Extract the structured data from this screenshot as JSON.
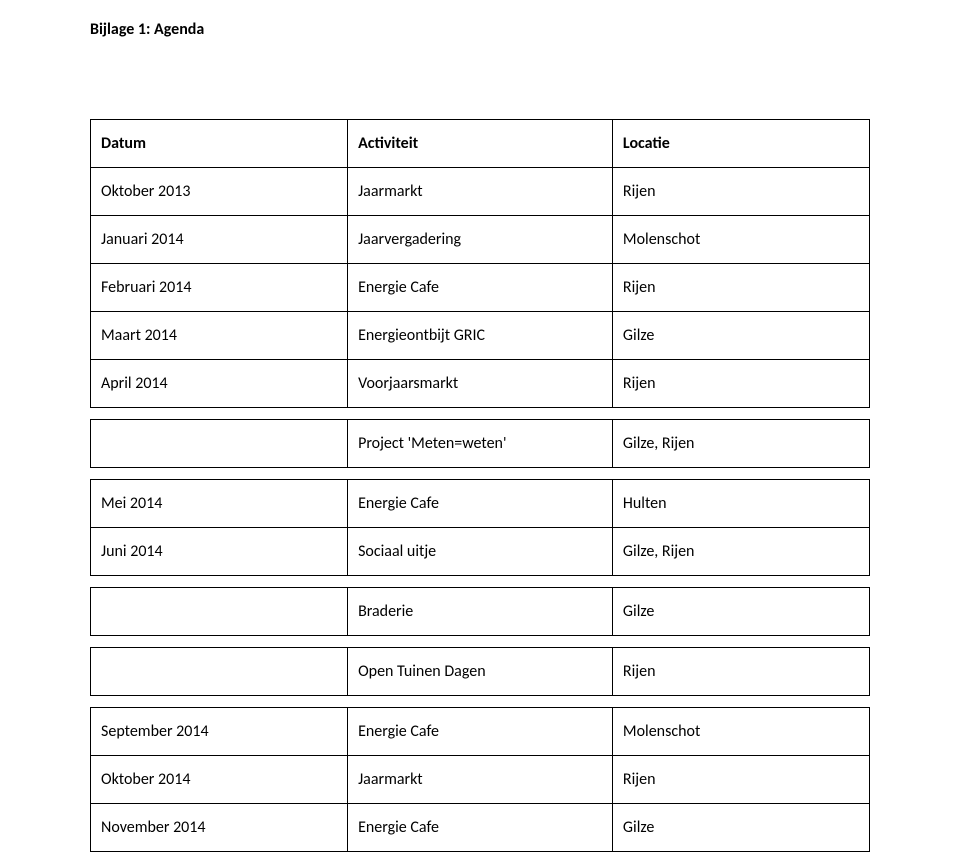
{
  "title": "Bijlage 1: Agenda",
  "headers": {
    "c1": "Datum",
    "c2": "Activiteit",
    "c3": "Locatie"
  },
  "groups": [
    {
      "rows": [
        {
          "c1": "Oktober 2013",
          "c2": "Jaarmarkt",
          "c3": "Rijen"
        },
        {
          "c1": "Januari 2014",
          "c2": "Jaarvergadering",
          "c3": "Molenschot"
        },
        {
          "c1": "Februari 2014",
          "c2": "Energie Cafe",
          "c3": "Rijen"
        },
        {
          "c1": "Maart 2014",
          "c2": "Energieontbijt GRIC",
          "c3": "Gilze"
        },
        {
          "c1": "April 2014",
          "c2": "Voorjaarsmarkt",
          "c3": "Rijen"
        }
      ]
    },
    {
      "rows": [
        {
          "c1": "",
          "c2": "Project 'Meten=weten'",
          "c3": "Gilze, Rijen"
        }
      ]
    },
    {
      "rows": [
        {
          "c1": "Mei 2014",
          "c2": "Energie Cafe",
          "c3": "Hulten"
        },
        {
          "c1": "Juni 2014",
          "c2": "Sociaal uitje",
          "c3": "Gilze, Rijen"
        }
      ]
    },
    {
      "rows": [
        {
          "c1": "",
          "c2": "Braderie",
          "c3": "Gilze"
        }
      ]
    },
    {
      "rows": [
        {
          "c1": "",
          "c2": "Open Tuinen Dagen",
          "c3": "Rijen"
        }
      ]
    },
    {
      "rows": [
        {
          "c1": "September 2014",
          "c2": "Energie Cafe",
          "c3": "Molenschot"
        },
        {
          "c1": "Oktober 2014",
          "c2": "Jaarmarkt",
          "c3": "Rijen"
        },
        {
          "c1": "November 2014",
          "c2": "Energie Cafe",
          "c3": "Gilze"
        }
      ]
    }
  ],
  "colors": {
    "text": "#000000",
    "background": "#ffffff",
    "border": "#000000"
  },
  "fonts": {
    "body_family": "Calibri",
    "title_size_pt": 12,
    "body_size_pt": 12,
    "title_weight": "bold",
    "header_weight": "bold"
  }
}
